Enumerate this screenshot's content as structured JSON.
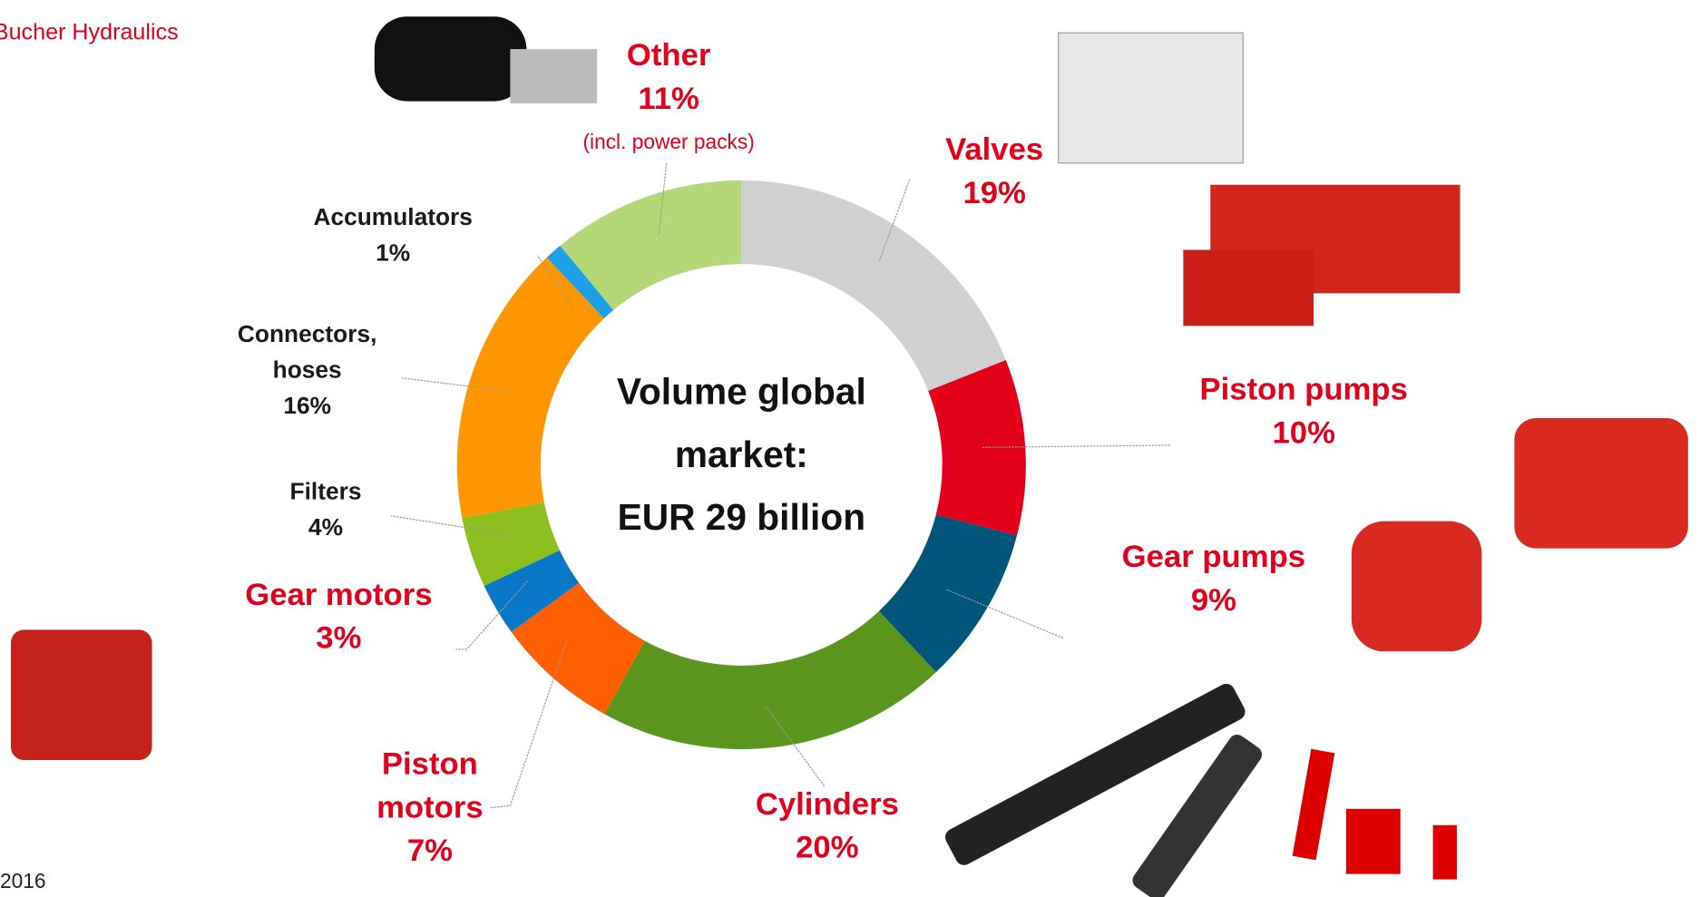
{
  "header": {
    "brand": "Bucher Hydraulics",
    "year": "2016"
  },
  "chart_data": {
    "type": "donut",
    "center_label": "Volume global market:\nEUR 29 billion",
    "categories": [
      "Valves",
      "Piston pumps",
      "Gear pumps",
      "Cylinders",
      "Piston\nmotors",
      "Gear motors",
      "Filters",
      "Connectors,\nhoses",
      "Accumulators",
      "Other"
    ],
    "values": [
      19,
      10,
      9,
      20,
      7,
      3,
      4,
      16,
      1,
      11
    ],
    "value_labels": [
      "19%",
      "10%",
      "9%",
      "20%",
      "7%",
      "3%",
      "4%",
      "16%",
      "1%",
      "11%"
    ],
    "colors": [
      "#d0d0d0",
      "#e2001a",
      "#00567a",
      "#5a961e",
      "#ff5f00",
      "#0a78c8",
      "#8cbe1e",
      "#ff9600",
      "#1ea0e6",
      "#b4d778"
    ],
    "label_colors": [
      "#e2001a",
      "#e2001a",
      "#e2001a",
      "#e2001a",
      "#e2001a",
      "#e2001a",
      "#1a1a1a",
      "#1a1a1a",
      "#1a1a1a",
      "#e2001a"
    ],
    "annotations": [
      {
        "category": 9,
        "text": "(incl. power packs)"
      }
    ]
  }
}
